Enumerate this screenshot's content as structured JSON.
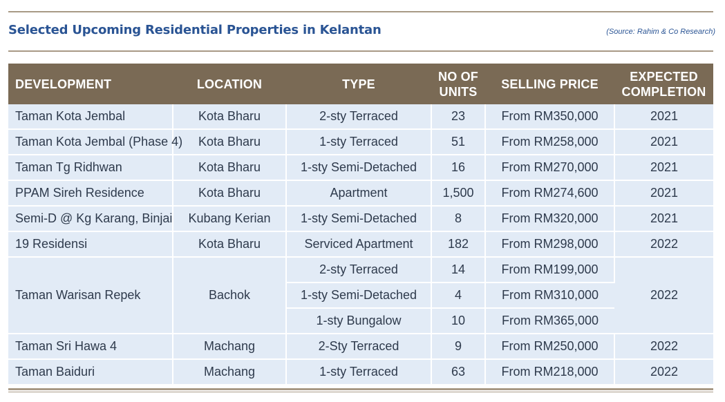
{
  "header": {
    "title": "Selected Upcoming Residential Properties in Kelantan",
    "source": "(Source: Rahim & Co Research)"
  },
  "table": {
    "columns": {
      "development": "DEVELOPMENT",
      "location": "LOCATION",
      "type": "TYPE",
      "units_line1": "NO OF",
      "units_line2": "UNITS",
      "price": "SELLING PRICE",
      "completion_line1": "EXPECTED",
      "completion_line2": "COMPLETION"
    },
    "rows": [
      {
        "development": "Taman Kota Jembal",
        "location": "Kota Bharu",
        "type": "2-sty Terraced",
        "units": "23",
        "price": "From RM350,000",
        "completion": "2021"
      },
      {
        "development": "Taman Kota Jembal (Phase 4)",
        "location": "Kota Bharu",
        "type": "1-sty Terraced",
        "units": "51",
        "price": "From RM258,000",
        "completion": "2021"
      },
      {
        "development": "Taman Tg Ridhwan",
        "location": "Kota Bharu",
        "type": "1-sty Semi-Detached",
        "units": "16",
        "price": "From RM270,000",
        "completion": "2021"
      },
      {
        "development": "PPAM Sireh Residence",
        "location": "Kota Bharu",
        "type": "Apartment",
        "units": "1,500",
        "price": "From RM274,600",
        "completion": "2021"
      },
      {
        "development": "Semi-D @ Kg Karang, Binjai",
        "location": "Kubang Kerian",
        "type": "1-sty Semi-Detached",
        "units": "8",
        "price": "From RM320,000",
        "completion": "2021"
      },
      {
        "development": "19 Residensi",
        "location": "Kota Bharu",
        "type": "Serviced Apartment",
        "units": "182",
        "price": "From RM298,000",
        "completion": "2022"
      }
    ],
    "group": {
      "development": "Taman Warisan Repek",
      "location": "Bachok",
      "completion": "2022",
      "subrows": [
        {
          "type": "2-sty Terraced",
          "units": "14",
          "price": "From RM199,000"
        },
        {
          "type": "1-sty Semi-Detached",
          "units": "4",
          "price": "From RM310,000"
        },
        {
          "type": "1-sty Bungalow",
          "units": "10",
          "price": "From RM365,000"
        }
      ]
    },
    "rows_after": [
      {
        "development": "Taman Sri Hawa 4",
        "location": "Machang",
        "type": "2-Sty Terraced",
        "units": "9",
        "price": "From RM250,000",
        "completion": "2022"
      },
      {
        "development": "Taman Baiduri",
        "location": "Machang",
        "type": "1-sty Terraced",
        "units": "63",
        "price": "From RM218,000",
        "completion": "2022"
      }
    ]
  }
}
